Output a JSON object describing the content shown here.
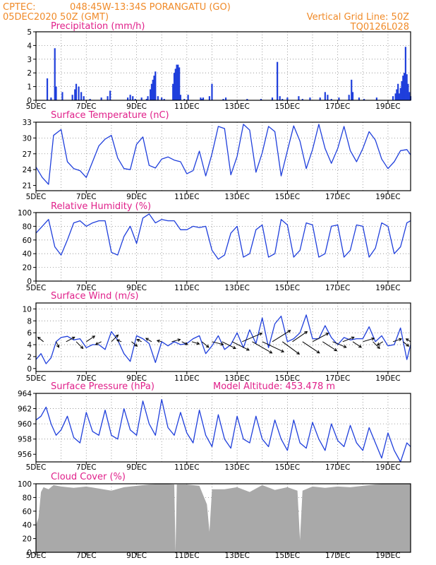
{
  "header": {
    "source": "CPTEC:",
    "location": "048:45W-13:34S   PORANGATU (GO)",
    "datetime": "05DEC2020 50Z (GMT)",
    "grid_note": "Vertical Grid Line: 50Z",
    "model_code": "TQ0126L028"
  },
  "colors": {
    "header": "#f08a28",
    "panel_title": "#e0208a",
    "line": "#1f3fdc",
    "bar": "#1f3fdc",
    "cloud": "#a9a9a9",
    "arrow": "#000000"
  },
  "chart_data": [
    {
      "type": "bar",
      "title": "Precipitation (mm/h)",
      "x_tick_labels": [
        "5DEC",
        "7DEC",
        "9DEC",
        "11DEC",
        "13DEC",
        "15DEC",
        "17DEC",
        "19DEC"
      ],
      "ylim": [
        0,
        5
      ],
      "yticks": [
        "0",
        "1",
        "2",
        "3",
        "4",
        "5"
      ],
      "grid": true,
      "day_range": [
        5,
        19.9
      ],
      "bars": [
        [
          5.45,
          1.6
        ],
        [
          5.6,
          0.2
        ],
        [
          5.75,
          3.8
        ],
        [
          5.8,
          1.0
        ],
        [
          6.05,
          0.6
        ],
        [
          6.45,
          0.4
        ],
        [
          6.55,
          0.8
        ],
        [
          6.6,
          1.2
        ],
        [
          6.7,
          1.0
        ],
        [
          6.8,
          0.6
        ],
        [
          6.9,
          0.3
        ],
        [
          7.15,
          0.1
        ],
        [
          7.6,
          0.2
        ],
        [
          7.85,
          0.3
        ],
        [
          7.95,
          0.7
        ],
        [
          8.65,
          0.2
        ],
        [
          8.75,
          0.4
        ],
        [
          8.85,
          0.3
        ],
        [
          8.95,
          0.1
        ],
        [
          9.2,
          0.2
        ],
        [
          9.4,
          0.1
        ],
        [
          9.45,
          0.3
        ],
        [
          9.55,
          0.8
        ],
        [
          9.6,
          1.2
        ],
        [
          9.65,
          1.5
        ],
        [
          9.7,
          1.8
        ],
        [
          9.75,
          2.1
        ],
        [
          9.85,
          0.3
        ],
        [
          10.0,
          0.2
        ],
        [
          10.1,
          0.1
        ],
        [
          10.45,
          1.2
        ],
        [
          10.5,
          2.0
        ],
        [
          10.55,
          2.3
        ],
        [
          10.6,
          2.6
        ],
        [
          10.65,
          2.6
        ],
        [
          10.7,
          2.4
        ],
        [
          10.75,
          0.4
        ],
        [
          10.9,
          0.1
        ],
        [
          11.05,
          0.4
        ],
        [
          11.55,
          0.2
        ],
        [
          11.6,
          0.1
        ],
        [
          11.65,
          0.2
        ],
        [
          11.9,
          0.3
        ],
        [
          12.0,
          1.2
        ],
        [
          12.45,
          0.1
        ],
        [
          12.55,
          0.2
        ],
        [
          13.4,
          0.1
        ],
        [
          13.95,
          0.1
        ],
        [
          14.4,
          0.2
        ],
        [
          14.6,
          2.8
        ],
        [
          14.7,
          0.3
        ],
        [
          14.8,
          0.1
        ],
        [
          15.0,
          0.2
        ],
        [
          15.45,
          0.3
        ],
        [
          15.6,
          0.1
        ],
        [
          15.9,
          0.2
        ],
        [
          16.3,
          0.2
        ],
        [
          16.5,
          0.6
        ],
        [
          16.6,
          0.4
        ],
        [
          16.75,
          0.1
        ],
        [
          17.05,
          0.2
        ],
        [
          17.45,
          0.4
        ],
        [
          17.55,
          1.5
        ],
        [
          17.6,
          0.6
        ],
        [
          17.85,
          0.2
        ],
        [
          18.05,
          0.1
        ],
        [
          18.55,
          0.2
        ],
        [
          19.2,
          0.3
        ],
        [
          19.3,
          0.5
        ],
        [
          19.35,
          0.8
        ],
        [
          19.4,
          1.2
        ],
        [
          19.45,
          0.5
        ],
        [
          19.5,
          0.9
        ],
        [
          19.55,
          1.4
        ],
        [
          19.6,
          1.8
        ],
        [
          19.65,
          2.0
        ],
        [
          19.7,
          3.9
        ],
        [
          19.75,
          1.9
        ],
        [
          19.8,
          1.2
        ],
        [
          19.85,
          0.6
        ],
        [
          19.9,
          0.3
        ]
      ]
    },
    {
      "type": "line",
      "title": "Surface Temperature (nC)",
      "x_tick_labels": [
        "5DEC",
        "7DEC",
        "9DEC",
        "11DEC",
        "13DEC",
        "15DEC",
        "17DEC",
        "19DEC"
      ],
      "ylim": [
        20,
        33
      ],
      "yticks": [
        "21",
        "24",
        "27",
        "30",
        "33"
      ],
      "ytick_values": [
        21,
        24,
        27,
        30,
        33
      ],
      "grid": true,
      "x": [
        5,
        5.25,
        5.5,
        5.7,
        6.0,
        6.25,
        6.5,
        6.75,
        7.0,
        7.25,
        7.5,
        7.75,
        8.0,
        8.25,
        8.5,
        8.75,
        9.0,
        9.25,
        9.5,
        9.75,
        10.0,
        10.25,
        10.5,
        10.75,
        11.0,
        11.25,
        11.5,
        11.75,
        12.0,
        12.25,
        12.5,
        12.75,
        13.0,
        13.25,
        13.5,
        13.75,
        14.0,
        14.25,
        14.5,
        14.75,
        15.0,
        15.25,
        15.5,
        15.75,
        16.0,
        16.25,
        16.5,
        16.75,
        17.0,
        17.25,
        17.5,
        17.75,
        18.0,
        18.25,
        18.5,
        18.75,
        19.0,
        19.25,
        19.5,
        19.75,
        19.9
      ],
      "y": [
        24.5,
        22.5,
        21.2,
        30.5,
        31.6,
        25.5,
        24.2,
        23.8,
        22.5,
        25.5,
        28.5,
        29.8,
        30.5,
        26.2,
        24.2,
        24.0,
        28.8,
        30.2,
        24.8,
        24.3,
        26.0,
        26.4,
        25.8,
        25.5,
        23.2,
        23.8,
        27.5,
        22.8,
        27.0,
        32.2,
        31.8,
        23.0,
        26.5,
        32.6,
        31.5,
        23.5,
        27.2,
        32.2,
        31.2,
        22.8,
        27.6,
        32.3,
        29.4,
        24.2,
        27.8,
        32.6,
        28.0,
        25.2,
        28.0,
        32.2,
        27.6,
        25.5,
        28.0,
        31.2,
        29.6,
        26.0,
        24.2,
        25.5,
        27.6,
        27.8,
        26.8
      ]
    },
    {
      "type": "line",
      "title": "Relative Humidity (%)",
      "x_tick_labels": [
        "5DEC",
        "7DEC",
        "9DEC",
        "11DEC",
        "13DEC",
        "15DEC",
        "17DEC",
        "19DEC"
      ],
      "ylim": [
        0,
        100
      ],
      "yticks": [
        "0",
        "20",
        "40",
        "60",
        "80",
        "100"
      ],
      "ytick_values": [
        0,
        20,
        40,
        60,
        80,
        100
      ],
      "grid": true,
      "x": [
        5,
        5.25,
        5.5,
        5.75,
        6.0,
        6.25,
        6.5,
        6.75,
        7.0,
        7.25,
        7.5,
        7.75,
        8.0,
        8.25,
        8.5,
        8.75,
        9.0,
        9.25,
        9.5,
        9.75,
        10.0,
        10.25,
        10.5,
        10.75,
        11.0,
        11.25,
        11.5,
        11.75,
        12.0,
        12.25,
        12.5,
        12.75,
        13.0,
        13.25,
        13.5,
        13.75,
        14.0,
        14.25,
        14.5,
        14.75,
        15.0,
        15.25,
        15.5,
        15.75,
        16.0,
        16.25,
        16.5,
        16.75,
        17.0,
        17.25,
        17.5,
        17.75,
        18.0,
        18.25,
        18.5,
        18.75,
        19.0,
        19.25,
        19.5,
        19.75,
        19.9
      ],
      "y": [
        70,
        80,
        90,
        50,
        38,
        60,
        85,
        88,
        80,
        85,
        88,
        88,
        42,
        38,
        65,
        80,
        55,
        92,
        98,
        85,
        90,
        88,
        88,
        75,
        75,
        80,
        78,
        80,
        45,
        32,
        38,
        70,
        80,
        35,
        40,
        75,
        82,
        35,
        40,
        90,
        82,
        35,
        45,
        85,
        82,
        35,
        40,
        80,
        82,
        35,
        45,
        82,
        80,
        35,
        48,
        85,
        80,
        40,
        50,
        85,
        88
      ]
    },
    {
      "type": "line",
      "title": "Surface Wind (m/s)",
      "x_tick_labels": [
        "5DEC",
        "7DEC",
        "9DEC",
        "11DEC",
        "13DEC",
        "15DEC",
        "17DEC",
        "19DEC"
      ],
      "ylim": [
        -0.5,
        11
      ],
      "yticks": [
        "0",
        "2",
        "4",
        "6",
        "8",
        "10"
      ],
      "ytick_values": [
        0,
        2,
        4,
        6,
        8,
        10
      ],
      "grid": true,
      "x": [
        5,
        5.2,
        5.4,
        5.6,
        5.8,
        6.0,
        6.25,
        6.5,
        6.75,
        7.0,
        7.25,
        7.5,
        7.75,
        8.0,
        8.25,
        8.5,
        8.75,
        9.0,
        9.25,
        9.5,
        9.75,
        10.0,
        10.25,
        10.5,
        10.75,
        11.0,
        11.25,
        11.5,
        11.75,
        12.0,
        12.25,
        12.5,
        12.75,
        13.0,
        13.25,
        13.5,
        13.75,
        14.0,
        14.25,
        14.5,
        14.75,
        15.0,
        15.25,
        15.5,
        15.75,
        16.0,
        16.25,
        16.5,
        16.75,
        17.0,
        17.25,
        17.5,
        17.75,
        18.0,
        18.25,
        18.5,
        18.75,
        19.0,
        19.25,
        19.5,
        19.75,
        19.9
      ],
      "y": [
        1.5,
        2.5,
        0.8,
        1.8,
        4.5,
        5.2,
        5.4,
        4.8,
        5.0,
        3.5,
        4.0,
        4.0,
        3.2,
        6.2,
        4.8,
        2.5,
        1.2,
        5.5,
        5.0,
        4.2,
        1.0,
        4.5,
        3.8,
        4.5,
        4.0,
        4.2,
        5.0,
        5.5,
        2.5,
        3.8,
        5.5,
        3.2,
        4.0,
        6.0,
        3.5,
        6.5,
        4.2,
        8.5,
        3.5,
        7.5,
        8.8,
        4.5,
        5.0,
        6.0,
        9.0,
        5.0,
        5.0,
        7.2,
        5.2,
        4.0,
        5.2,
        4.8,
        5.0,
        5.0,
        7.0,
        4.5,
        5.5,
        3.8,
        4.0,
        6.8,
        1.5,
        4.0
      ]
    },
    {
      "type": "line",
      "title": "Surface Pressure (hPa)",
      "annotation": "Model Altitude: 453.478  m",
      "x_tick_labels": [
        "5DEC",
        "7DEC",
        "9DEC",
        "11DEC",
        "13DEC",
        "15DEC",
        "17DEC",
        "19DEC"
      ],
      "ylim": [
        955,
        964
      ],
      "yticks": [
        "956",
        "958",
        "960",
        "962",
        "964"
      ],
      "ytick_values": [
        956,
        958,
        960,
        962,
        964
      ],
      "grid": true,
      "x": [
        5,
        5.2,
        5.4,
        5.6,
        5.8,
        6.0,
        6.25,
        6.5,
        6.75,
        7.0,
        7.25,
        7.5,
        7.75,
        8.0,
        8.25,
        8.5,
        8.75,
        9.0,
        9.25,
        9.5,
        9.75,
        10.0,
        10.25,
        10.5,
        10.75,
        11.0,
        11.25,
        11.5,
        11.75,
        12.0,
        12.25,
        12.5,
        12.75,
        13.0,
        13.25,
        13.5,
        13.75,
        14.0,
        14.25,
        14.5,
        14.75,
        15.0,
        15.25,
        15.5,
        15.75,
        16.0,
        16.25,
        16.5,
        16.75,
        17.0,
        17.25,
        17.5,
        17.75,
        18.0,
        18.25,
        18.5,
        18.75,
        19.0,
        19.25,
        19.5,
        19.75,
        19.9
      ],
      "y": [
        960.5,
        961.0,
        962.2,
        960.0,
        958.5,
        959.2,
        961.0,
        958.2,
        957.5,
        961.5,
        959.0,
        958.5,
        961.8,
        958.5,
        958.0,
        962.0,
        959.2,
        958.5,
        963.0,
        960.0,
        958.5,
        963.2,
        959.5,
        958.5,
        961.5,
        958.8,
        957.5,
        961.8,
        958.5,
        957.0,
        961.2,
        958.0,
        956.8,
        961.0,
        958.0,
        957.5,
        961.0,
        958.0,
        957.0,
        960.5,
        958.0,
        956.5,
        960.5,
        957.5,
        956.8,
        960.2,
        958.0,
        956.5,
        960.0,
        957.8,
        957.0,
        959.8,
        957.5,
        956.5,
        959.5,
        957.5,
        955.5,
        958.8,
        956.5,
        955.0,
        957.5,
        957.0
      ]
    },
    {
      "type": "area",
      "title": "Cloud Cover (%)",
      "x_tick_labels": [
        "5DEC",
        "7DEC",
        "9DEC",
        "11DEC",
        "13DEC",
        "15DEC",
        "17DEC",
        "19DEC"
      ],
      "ylim": [
        0,
        100
      ],
      "yticks": [
        "0",
        "20",
        "40",
        "60",
        "80",
        "100"
      ],
      "ytick_values": [
        0,
        20,
        40,
        60,
        80,
        100
      ],
      "grid": true,
      "x": [
        5,
        5.1,
        5.2,
        5.3,
        5.5,
        5.7,
        6.0,
        6.5,
        7.0,
        7.5,
        8.0,
        8.5,
        9.0,
        9.5,
        10.0,
        10.5,
        10.55,
        10.6,
        11.0,
        11.5,
        11.8,
        11.9,
        12.0,
        12.5,
        13.0,
        13.5,
        14.0,
        14.5,
        15.0,
        15.4,
        15.5,
        15.6,
        16.0,
        16.5,
        17.0,
        17.5,
        18.0,
        18.5,
        19.0,
        19.5,
        19.9
      ],
      "y": [
        40,
        50,
        88,
        95,
        92,
        98,
        96,
        94,
        96,
        93,
        90,
        95,
        97,
        99,
        100,
        99,
        0,
        99,
        99,
        97,
        70,
        30,
        92,
        92,
        95,
        88,
        98,
        91,
        95,
        90,
        18,
        90,
        96,
        94,
        96,
        95,
        97,
        99,
        100,
        100,
        100
      ]
    }
  ],
  "wind_vectors": {
    "days": [
      5.3,
      5.8,
      6.2,
      6.6,
      7.0,
      7.6,
      8.0,
      8.4,
      8.8,
      9.2,
      9.6,
      10.0,
      10.4,
      10.8,
      11.2,
      11.6,
      12.0,
      12.4,
      12.8,
      13.2,
      13.6,
      14.0,
      14.4,
      14.8,
      15.2,
      15.6,
      16.0,
      16.4,
      16.8,
      17.2,
      17.6,
      18.0,
      18.4,
      18.8,
      19.2,
      19.6,
      19.9
    ],
    "u": [
      -1,
      0.5,
      1.5,
      1.2,
      1.5,
      -1.0,
      1.2,
      -0.8,
      1.0,
      -0.8,
      -1.0,
      -0.8,
      1.5,
      1.0,
      1.3,
      1.2,
      2.0,
      2.4,
      3.0,
      3.5,
      3.5,
      3.8,
      3.2,
      3.0,
      2.6,
      3.0,
      2.8,
      2.5,
      2.4,
      2.0,
      1.5,
      2.0,
      1.2,
      -1.0,
      1.5,
      1.0,
      -0.8
    ],
    "v": [
      0.8,
      -1.0,
      0.8,
      -1.2,
      1.0,
      -0.5,
      1.2,
      0.3,
      -0.8,
      0.4,
      0.6,
      0.2,
      0.4,
      -0.5,
      -0.4,
      -1.0,
      -0.5,
      -1.2,
      -1.5,
      1.5,
      -2.0,
      -1.8,
      2.0,
      -2.2,
      1.8,
      -2.0,
      1.5,
      -1.6,
      -1.0,
      0.8,
      -1.0,
      0.6,
      -1.2,
      -0.6,
      0.5,
      -0.8,
      0.5
    ]
  }
}
